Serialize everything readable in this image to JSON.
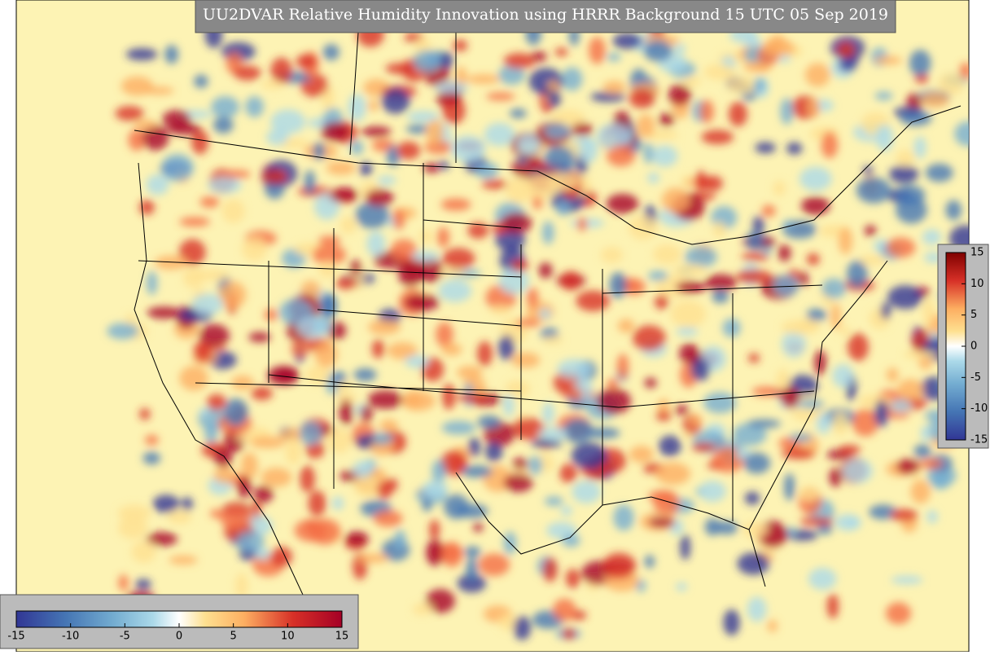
{
  "title": "UU2DVAR Relative Humidity Innovation using HRRR Background 15 UTC 05 Sep 2019",
  "colorbars": [
    {
      "orientation": "vertical",
      "lim": [
        -15,
        15
      ],
      "ticks": [
        15,
        10,
        5,
        0,
        -5,
        -10,
        -15
      ]
    },
    {
      "orientation": "horizontal",
      "lim": [
        -15,
        15
      ],
      "ticks": [
        -15,
        -10,
        -5,
        0,
        5,
        10,
        15
      ]
    }
  ]
}
